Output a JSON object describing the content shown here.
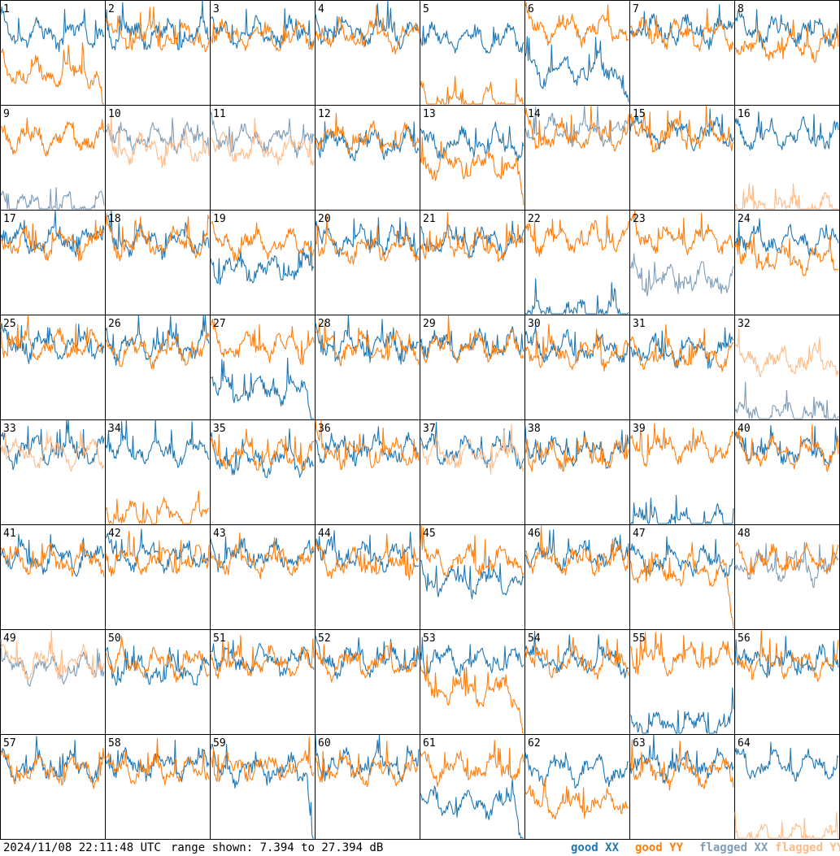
{
  "footer": {
    "timestamp": "2024/11/08 22:11:48 UTC",
    "range": "range shown: 7.394 to 27.394 dB"
  },
  "legend": [
    {
      "label": "good XX",
      "color": "#1f77b4"
    },
    {
      "label": "good YY",
      "color": "#ff7f0e"
    },
    {
      "label": "flagged XX",
      "color": "#7f9db9"
    },
    {
      "label": "flagged YY",
      "color": "#ffbb88"
    }
  ],
  "chart_data": {
    "type": "line",
    "grid": "8x8 small multiples, one panel per antenna",
    "ylim_db": [
      7.394,
      27.394
    ],
    "colors": {
      "good_xx": "#1f77b4",
      "good_yy": "#ff7f0e",
      "flagged_xx": "#7f9db9",
      "flagged_yy": "#ffbb88"
    },
    "panels": [
      {
        "id": "1",
        "xx": "good",
        "yy": "good",
        "xx_level": 21.0,
        "yy_level": 13.5,
        "yy_dropout": true
      },
      {
        "id": "2",
        "xx": "good",
        "yy": "good",
        "xx_level": 21.0,
        "yy_level": 20.5
      },
      {
        "id": "3",
        "xx": "good",
        "yy": "good",
        "xx_level": 21.0,
        "yy_level": 20.5
      },
      {
        "id": "4",
        "xx": "good",
        "yy": "good",
        "xx_level": 21.5,
        "yy_level": 20.5
      },
      {
        "id": "5",
        "xx": "good",
        "yy": "good",
        "xx_level": 20.0,
        "yy_level": 7.5,
        "yy_dropout": true
      },
      {
        "id": "6",
        "xx": "good",
        "yy": "good",
        "xx_level": 14.0,
        "yy_level": 22.0,
        "xx_dropout": true
      },
      {
        "id": "7",
        "xx": "good",
        "yy": "good",
        "xx_level": 21.5,
        "yy_level": 21.0
      },
      {
        "id": "8",
        "xx": "good",
        "yy": "good",
        "xx_level": 21.5,
        "yy_level": 18.5
      },
      {
        "id": "9",
        "xx": "flagged",
        "yy": "good",
        "xx_level": 8.0,
        "yy_level": 21.0
      },
      {
        "id": "10",
        "xx": "flagged",
        "yy": "flagged",
        "xx_level": 21.0,
        "yy_level": 19.0
      },
      {
        "id": "11",
        "xx": "flagged",
        "yy": "flagged",
        "xx_level": 21.0,
        "yy_level": 19.0
      },
      {
        "id": "12",
        "xx": "good",
        "yy": "good",
        "xx_level": 20.0,
        "yy_level": 21.0
      },
      {
        "id": "13",
        "xx": "good",
        "yy": "good",
        "xx_level": 20.0,
        "yy_level": 16.0,
        "yy_dropout": true
      },
      {
        "id": "14",
        "xx": "flagged",
        "yy": "good",
        "xx_level": 22.5,
        "yy_level": 21.5
      },
      {
        "id": "15",
        "xx": "good",
        "yy": "good",
        "xx_level": 22.0,
        "yy_level": 21.5
      },
      {
        "id": "16",
        "xx": "good",
        "yy": "flagged",
        "xx_level": 21.5,
        "yy_level": 7.5
      },
      {
        "id": "17",
        "xx": "good",
        "yy": "good",
        "xx_level": 21.5,
        "yy_level": 21.0
      },
      {
        "id": "18",
        "xx": "good",
        "yy": "good",
        "xx_level": 21.5,
        "yy_level": 21.0
      },
      {
        "id": "19",
        "xx": "good",
        "yy": "good",
        "xx_level": 16.0,
        "yy_level": 21.0
      },
      {
        "id": "20",
        "xx": "good",
        "yy": "good",
        "xx_level": 21.5,
        "yy_level": 20.0
      },
      {
        "id": "21",
        "xx": "good",
        "yy": "good",
        "xx_level": 21.5,
        "yy_level": 20.5
      },
      {
        "id": "22",
        "xx": "good",
        "yy": "good",
        "xx_level": 7.5,
        "yy_level": 22.0
      },
      {
        "id": "23",
        "xx": "flagged",
        "yy": "good",
        "xx_level": 14.0,
        "yy_level": 22.0
      },
      {
        "id": "24",
        "xx": "good",
        "yy": "good",
        "xx_level": 21.5,
        "yy_level": 18.0
      },
      {
        "id": "25",
        "xx": "good",
        "yy": "good",
        "xx_level": 21.5,
        "yy_level": 21.5
      },
      {
        "id": "26",
        "xx": "good",
        "yy": "good",
        "xx_level": 21.5,
        "yy_level": 20.5
      },
      {
        "id": "27",
        "xx": "good",
        "yy": "good",
        "xx_level": 13.0,
        "yy_level": 21.5,
        "xx_dropout": true
      },
      {
        "id": "28",
        "xx": "good",
        "yy": "good",
        "xx_level": 21.5,
        "yy_level": 21.0
      },
      {
        "id": "29",
        "xx": "good",
        "yy": "good",
        "xx_level": 21.5,
        "yy_level": 21.0
      },
      {
        "id": "30",
        "xx": "good",
        "yy": "good",
        "xx_level": 21.0,
        "yy_level": 20.0
      },
      {
        "id": "31",
        "xx": "good",
        "yy": "good",
        "xx_level": 20.5,
        "yy_level": 19.5
      },
      {
        "id": "32",
        "xx": "flagged",
        "yy": "flagged",
        "xx_level": 8.0,
        "yy_level": 18.5
      },
      {
        "id": "33",
        "xx": "good",
        "yy": "flagged",
        "xx_level": 21.5,
        "yy_level": 21.0
      },
      {
        "id": "34",
        "xx": "good",
        "yy": "good",
        "xx_level": 21.5,
        "yy_level": 9.0
      },
      {
        "id": "35",
        "xx": "good",
        "yy": "good",
        "xx_level": 19.5,
        "yy_level": 20.5
      },
      {
        "id": "36",
        "xx": "good",
        "yy": "good",
        "xx_level": 21.5,
        "yy_level": 21.0
      },
      {
        "id": "37",
        "xx": "good",
        "yy": "flagged",
        "xx_level": 21.5,
        "yy_level": 20.5
      },
      {
        "id": "38",
        "xx": "good",
        "yy": "good",
        "xx_level": 21.5,
        "yy_level": 20.5
      },
      {
        "id": "39",
        "xx": "good",
        "yy": "good",
        "xx_level": 7.5,
        "yy_level": 22.0
      },
      {
        "id": "40",
        "xx": "good",
        "yy": "good",
        "xx_level": 21.5,
        "yy_level": 21.0
      },
      {
        "id": "41",
        "xx": "good",
        "yy": "good",
        "xx_level": 21.0,
        "yy_level": 20.5
      },
      {
        "id": "42",
        "xx": "good",
        "yy": "good",
        "xx_level": 21.5,
        "yy_level": 20.5
      },
      {
        "id": "43",
        "xx": "good",
        "yy": "good",
        "xx_level": 21.5,
        "yy_level": 20.5
      },
      {
        "id": "44",
        "xx": "good",
        "yy": "good",
        "xx_level": 21.5,
        "yy_level": 20.0
      },
      {
        "id": "45",
        "xx": "good",
        "yy": "good",
        "xx_level": 16.5,
        "yy_level": 20.5
      },
      {
        "id": "46",
        "xx": "good",
        "yy": "good",
        "xx_level": 21.5,
        "yy_level": 20.5
      },
      {
        "id": "47",
        "xx": "good",
        "yy": "good",
        "xx_level": 20.5,
        "yy_level": 18.5,
        "yy_dropout": true
      },
      {
        "id": "48",
        "xx": "flagged",
        "yy": "good",
        "xx_level": 19.0,
        "yy_level": 20.5
      },
      {
        "id": "49",
        "xx": "flagged",
        "yy": "flagged",
        "xx_level": 20.0,
        "yy_level": 21.0
      },
      {
        "id": "50",
        "xx": "good",
        "yy": "good",
        "xx_level": 19.5,
        "yy_level": 21.0
      },
      {
        "id": "51",
        "xx": "good",
        "yy": "good",
        "xx_level": 21.5,
        "yy_level": 21.0
      },
      {
        "id": "52",
        "xx": "good",
        "yy": "good",
        "xx_level": 21.5,
        "yy_level": 21.0
      },
      {
        "id": "53",
        "xx": "good",
        "yy": "good",
        "xx_level": 21.5,
        "yy_level": 15.5,
        "yy_dropout": true
      },
      {
        "id": "54",
        "xx": "good",
        "yy": "good",
        "xx_level": 21.5,
        "yy_level": 21.0
      },
      {
        "id": "55",
        "xx": "good",
        "yy": "good",
        "xx_level": 9.0,
        "yy_level": 22.0
      },
      {
        "id": "56",
        "xx": "good",
        "yy": "good",
        "xx_level": 21.0,
        "yy_level": 21.0
      },
      {
        "id": "57",
        "xx": "good",
        "yy": "good",
        "xx_level": 21.0,
        "yy_level": 20.5
      },
      {
        "id": "58",
        "xx": "good",
        "yy": "good",
        "xx_level": 21.5,
        "yy_level": 20.5
      },
      {
        "id": "59",
        "xx": "good",
        "yy": "good",
        "xx_level": 20.5,
        "yy_level": 21.0,
        "xx_dropout": true
      },
      {
        "id": "60",
        "xx": "good",
        "yy": "good",
        "xx_level": 21.5,
        "yy_level": 20.5
      },
      {
        "id": "61",
        "xx": "good",
        "yy": "good",
        "xx_level": 14.0,
        "yy_level": 21.0,
        "xx_dropout": true
      },
      {
        "id": "62",
        "xx": "good",
        "yy": "good",
        "xx_level": 20.5,
        "yy_level": 14.0
      },
      {
        "id": "63",
        "xx": "good",
        "yy": "good",
        "xx_level": 21.5,
        "yy_level": 20.0
      },
      {
        "id": "64",
        "xx": "good",
        "yy": "flagged",
        "xx_level": 21.5,
        "yy_level": 7.5
      }
    ]
  }
}
